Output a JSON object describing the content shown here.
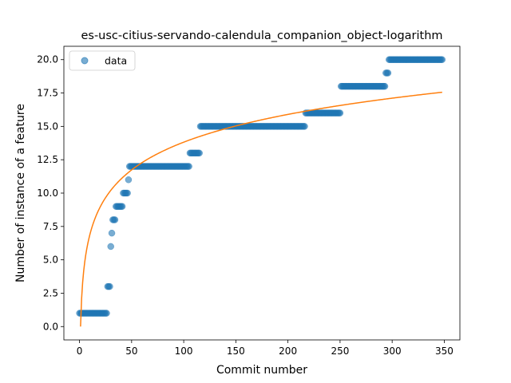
{
  "chart_data": {
    "type": "scatter",
    "title": "es-usc-citius-servando-calendula_companion_object-logarithm",
    "xlabel": "Commit number",
    "ylabel": "Number of instance of a feature",
    "xlim": [
      -15,
      365
    ],
    "ylim": [
      -1,
      21
    ],
    "xticks": [
      0,
      50,
      100,
      150,
      200,
      250,
      300,
      350
    ],
    "yticks": [
      0.0,
      2.5,
      5.0,
      7.5,
      10.0,
      12.5,
      15.0,
      17.5,
      20.0
    ],
    "xtick_labels": [
      "0",
      "50",
      "100",
      "150",
      "200",
      "250",
      "300",
      "350"
    ],
    "ytick_labels": [
      "0.0",
      "2.5",
      "5.0",
      "7.5",
      "10.0",
      "12.5",
      "15.0",
      "17.5",
      "20.0"
    ],
    "legend": {
      "position": "upper-left",
      "entries": [
        "data"
      ]
    },
    "grid": false,
    "colors": {
      "data": "#1f77b4",
      "fit": "#ff7f0e"
    },
    "series": [
      {
        "name": "data",
        "kind": "points",
        "steps": [
          {
            "x_start": 0,
            "x_end": 26,
            "y": 1
          },
          {
            "x_start": 27,
            "x_end": 29,
            "y": 3
          },
          {
            "x_start": 30,
            "x_end": 30,
            "y": 6
          },
          {
            "x_start": 31,
            "x_end": 31,
            "y": 7
          },
          {
            "x_start": 32,
            "x_end": 34,
            "y": 8
          },
          {
            "x_start": 35,
            "x_end": 41,
            "y": 9
          },
          {
            "x_start": 42,
            "x_end": 46,
            "y": 10
          },
          {
            "x_start": 47,
            "x_end": 47,
            "y": 11
          },
          {
            "x_start": 48,
            "x_end": 105,
            "y": 12
          },
          {
            "x_start": 106,
            "x_end": 115,
            "y": 13
          },
          {
            "x_start": 116,
            "x_end": 216,
            "y": 15
          },
          {
            "x_start": 217,
            "x_end": 250,
            "y": 16
          },
          {
            "x_start": 251,
            "x_end": 293,
            "y": 18
          },
          {
            "x_start": 294,
            "x_end": 296,
            "y": 19
          },
          {
            "x_start": 297,
            "x_end": 348,
            "y": 20
          }
        ]
      },
      {
        "kind": "line",
        "fit": "logarithmic",
        "x_range": [
          1,
          348
        ],
        "coefficients": {
          "a": 3.0,
          "b": 0.0
        }
      }
    ]
  }
}
